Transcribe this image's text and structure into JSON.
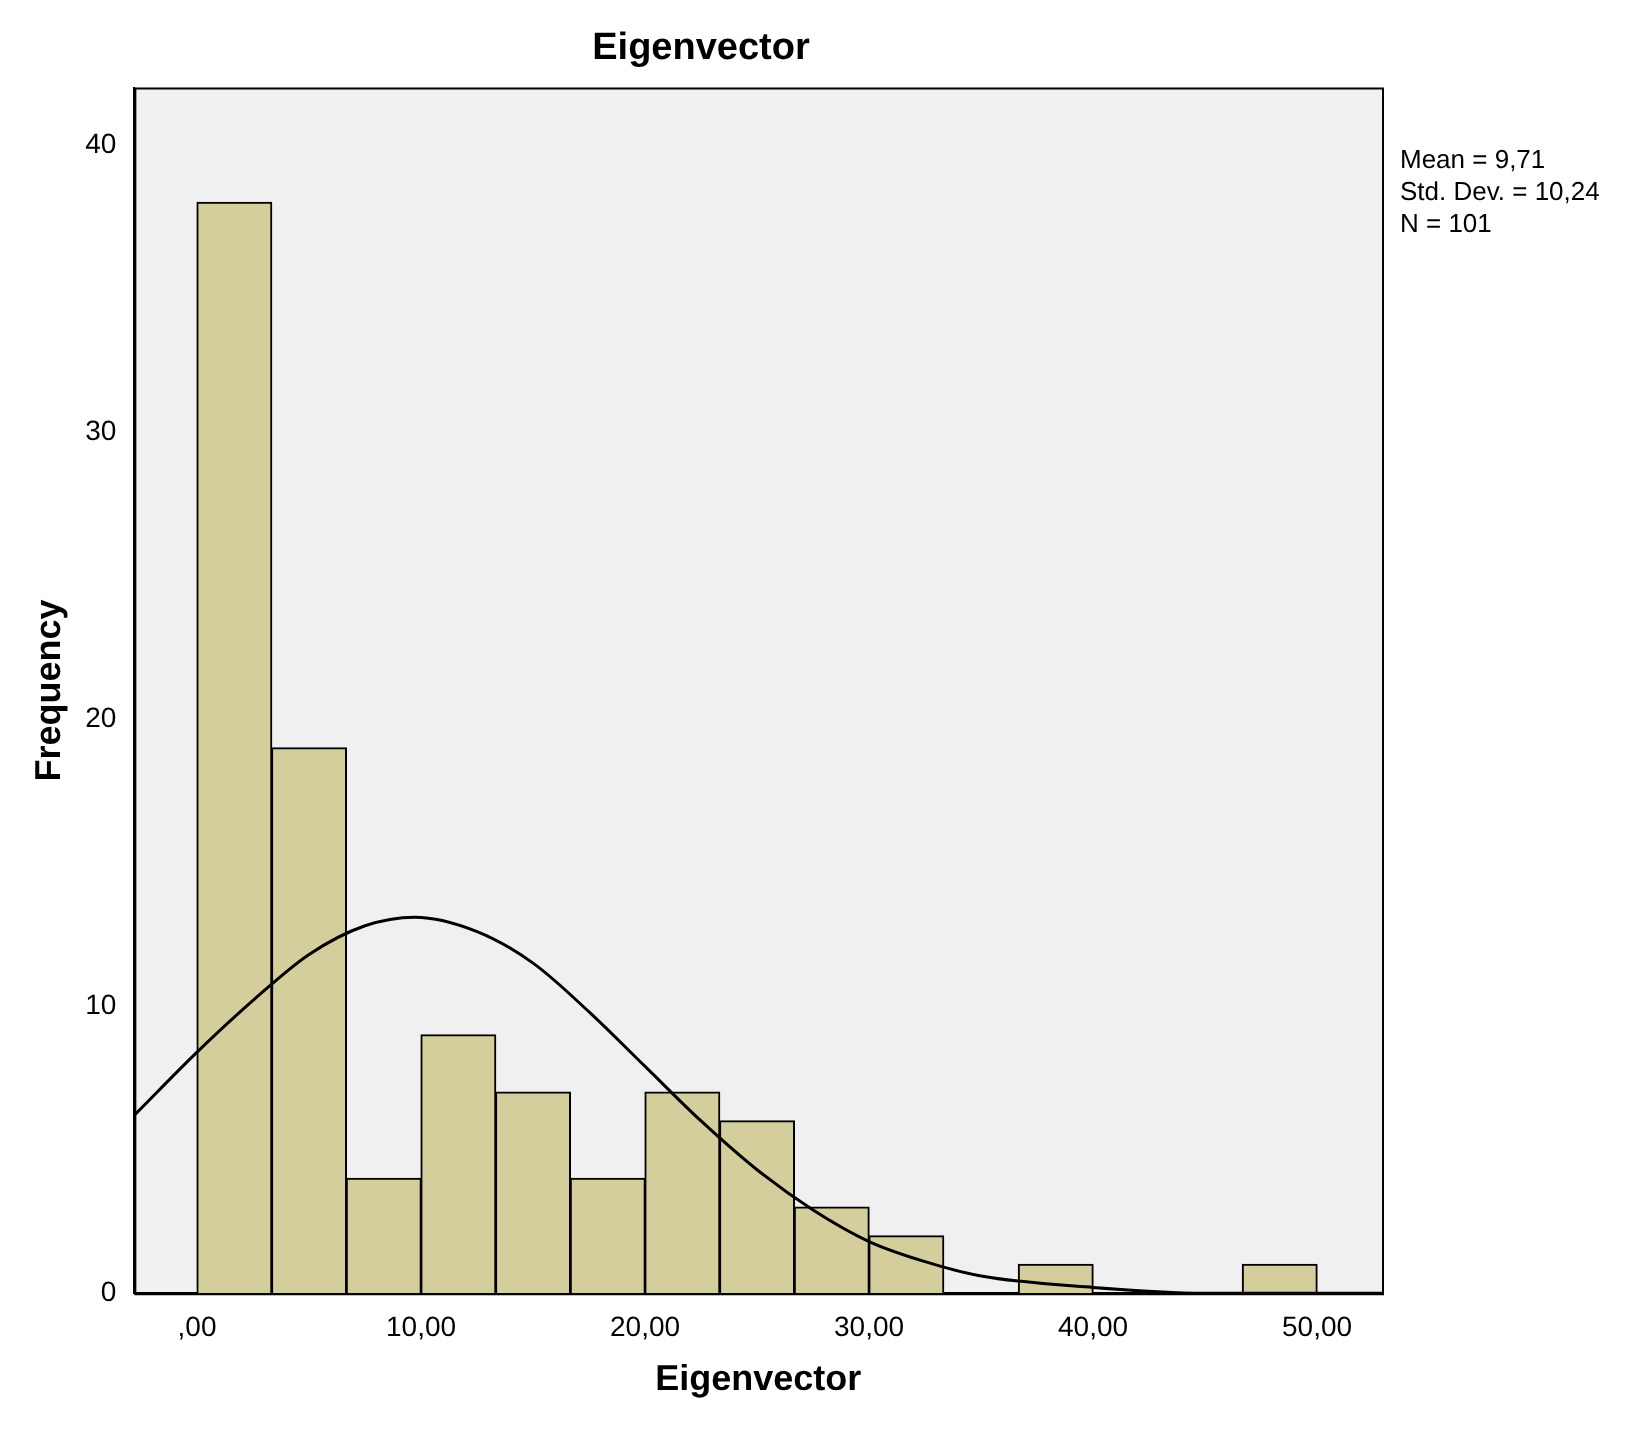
{
  "chart_data": {
    "type": "histogram",
    "title": "Eigenvector",
    "xlabel": "Eigenvector",
    "ylabel": "Frequency",
    "bins": [
      0,
      3.33,
      6.67,
      10,
      13.33,
      16.67,
      20,
      23.33,
      26.67,
      30,
      33.33,
      36.67,
      40,
      43.33,
      46.67,
      50
    ],
    "values": [
      38,
      19,
      4,
      9,
      7,
      4,
      7,
      6,
      3,
      2,
      0,
      1,
      0,
      0,
      1
    ],
    "color": "#d3ce9b",
    "series": [
      {
        "type": "line",
        "color": "#000000",
        "x": [
          -2.8,
          0,
          2.5,
          5,
          7.5,
          9.71,
          12.5,
          15,
          17.5,
          20,
          22.5,
          25,
          27.5,
          30,
          32.5,
          35,
          40,
          45,
          50,
          52.9
        ],
        "values": [
          6.2,
          8.4,
          10.2,
          11.8,
          12.8,
          13.1,
          12.6,
          11.5,
          9.8,
          7.9,
          6.0,
          4.3,
          2.9,
          1.8,
          1.1,
          0.6,
          0.2,
          0,
          0,
          0
        ]
      }
    ],
    "xlim": [
      -2.8,
      52.9
    ],
    "ylim": [
      0,
      42
    ],
    "xticks": [
      {
        "value": 0,
        "label": ",00"
      },
      {
        "value": 10,
        "label": "10,00"
      },
      {
        "value": 20,
        "label": "20,00"
      },
      {
        "value": 30,
        "label": "30,00"
      },
      {
        "value": 40,
        "label": "40,00"
      },
      {
        "value": 50,
        "label": "50,00"
      }
    ],
    "yticks": [
      0,
      10,
      20,
      30,
      40
    ],
    "annotations": [
      "Mean = 9,71",
      "Std. Dev. = 10,24",
      "N = 101"
    ],
    "grid": false,
    "legend": false,
    "marker": "none"
  }
}
